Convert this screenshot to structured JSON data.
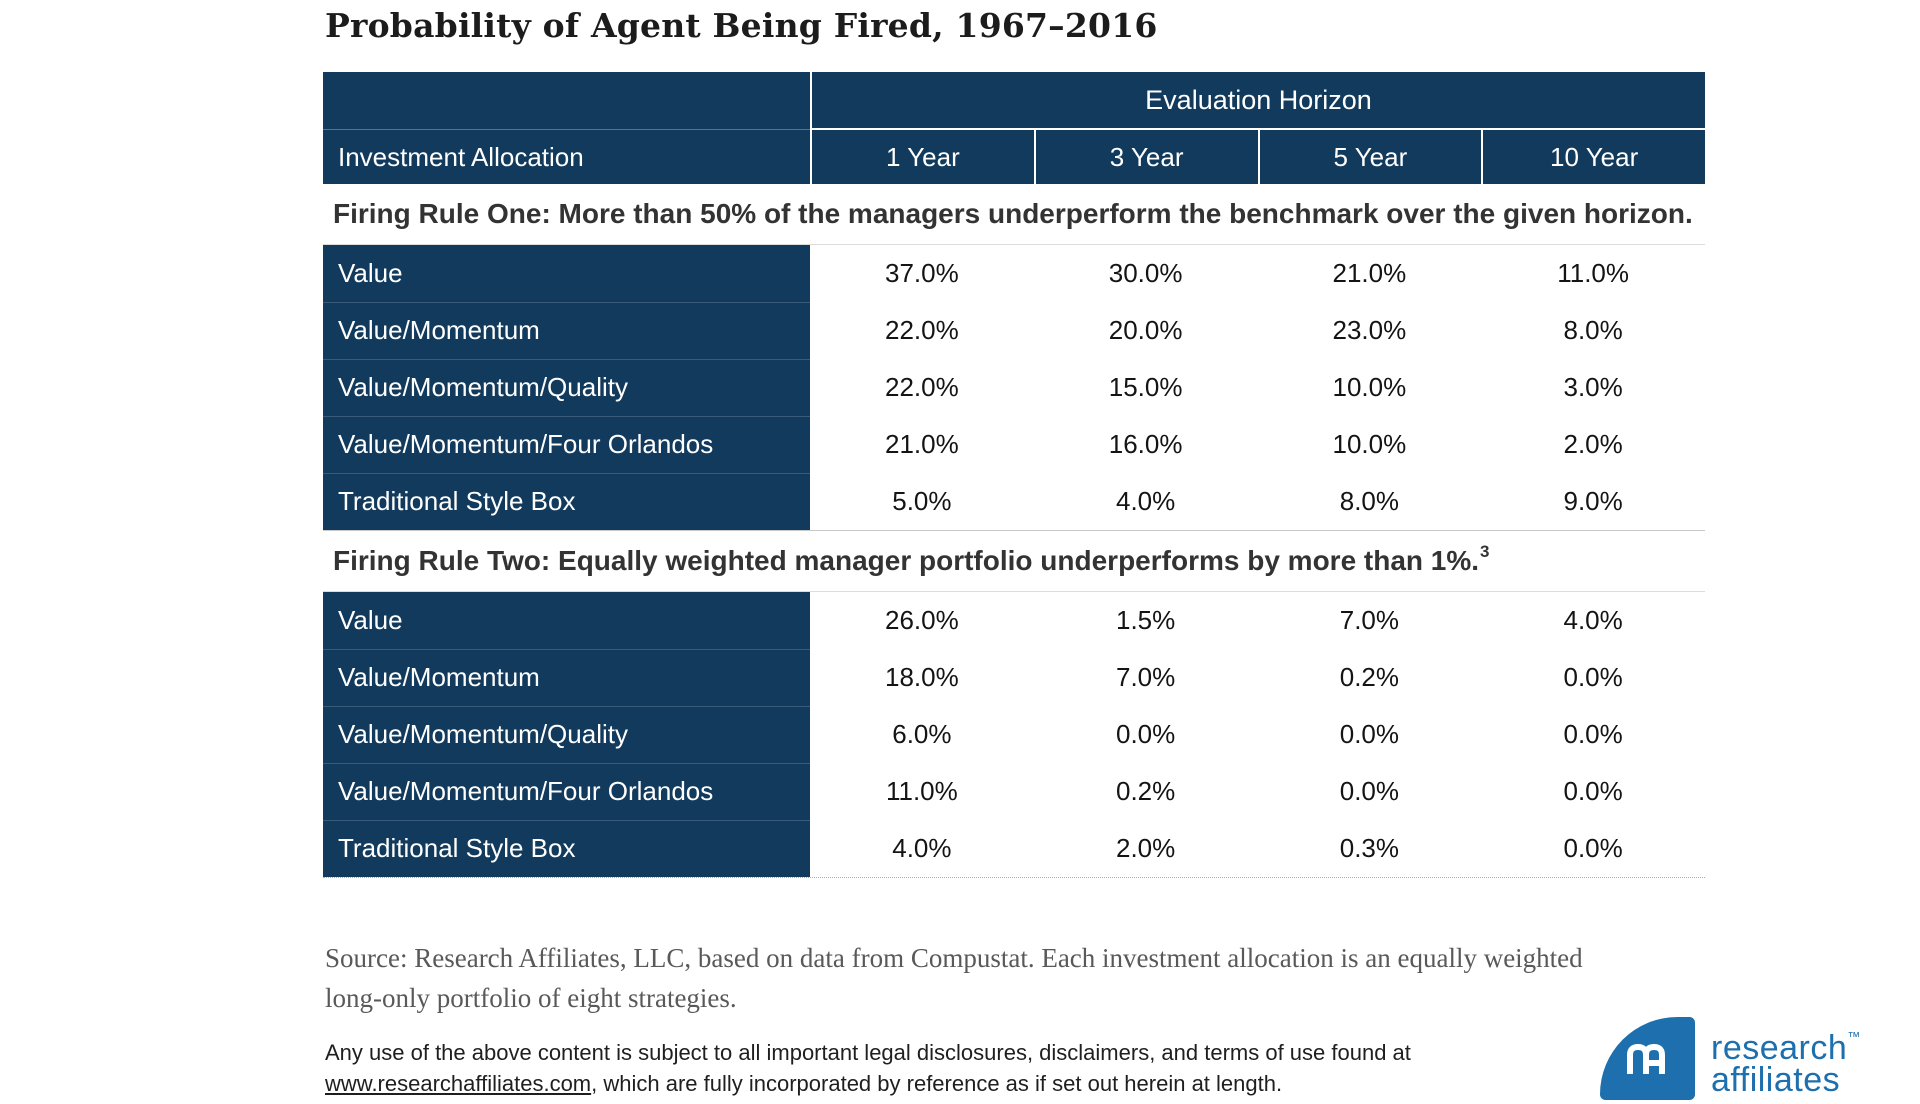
{
  "title": "Probability of Agent Being Fired, 1967–2016",
  "table": {
    "header": {
      "group_label": "Evaluation Horizon",
      "row_header": "Investment Allocation",
      "columns": [
        "1 Year",
        "3 Year",
        "5 Year",
        "10 Year"
      ]
    },
    "sections": [
      {
        "heading": "Firing Rule One: More than 50% of the managers underperform the benchmark over the given horizon.",
        "heading_superscript": "",
        "rows": [
          {
            "label": "Value",
            "values": [
              "37.0%",
              "30.0%",
              "21.0%",
              "11.0%"
            ]
          },
          {
            "label": "Value/Momentum",
            "values": [
              "22.0%",
              "20.0%",
              "23.0%",
              "8.0%"
            ]
          },
          {
            "label": "Value/Momentum/Quality",
            "values": [
              "22.0%",
              "15.0%",
              "10.0%",
              "3.0%"
            ]
          },
          {
            "label": "Value/Momentum/Four Orlandos",
            "values": [
              "21.0%",
              "16.0%",
              "10.0%",
              "2.0%"
            ]
          },
          {
            "label": "Traditional Style Box",
            "values": [
              "5.0%",
              "4.0%",
              "8.0%",
              "9.0%"
            ]
          }
        ]
      },
      {
        "heading": "Firing Rule Two: Equally weighted manager portfolio underperforms by more than 1%.",
        "heading_superscript": "3",
        "rows": [
          {
            "label": "Value",
            "values": [
              "26.0%",
              "1.5%",
              "7.0%",
              "4.0%"
            ]
          },
          {
            "label": "Value/Momentum",
            "values": [
              "18.0%",
              "7.0%",
              "0.2%",
              "0.0%"
            ]
          },
          {
            "label": "Value/Momentum/Quality",
            "values": [
              "6.0%",
              "0.0%",
              "0.0%",
              "0.0%"
            ]
          },
          {
            "label": "Value/Momentum/Four Orlandos",
            "values": [
              "11.0%",
              "0.2%",
              "0.0%",
              "0.0%"
            ]
          },
          {
            "label": "Traditional Style Box",
            "values": [
              "4.0%",
              "2.0%",
              "0.3%",
              "0.0%"
            ]
          }
        ]
      }
    ]
  },
  "footer": {
    "source": "Source: Research Affiliates, LLC, based on data from Compustat. Each investment allocation is an equally weighted long-only portfolio of eight strategies.",
    "legal_before_link": "Any use of the above content is subject to all important legal disclosures, disclaimers, and terms of use found at ",
    "legal_link": "www.researchaffiliates.com",
    "legal_after_link": ", which are fully incorporated by reference as if set out herein at length."
  },
  "logo": {
    "line1": "research",
    "line2": "affiliates",
    "trademark": "™",
    "monogram": "RA"
  },
  "colors": {
    "table_navy": "#123a5c",
    "logo_blue": "#1d6fad"
  }
}
